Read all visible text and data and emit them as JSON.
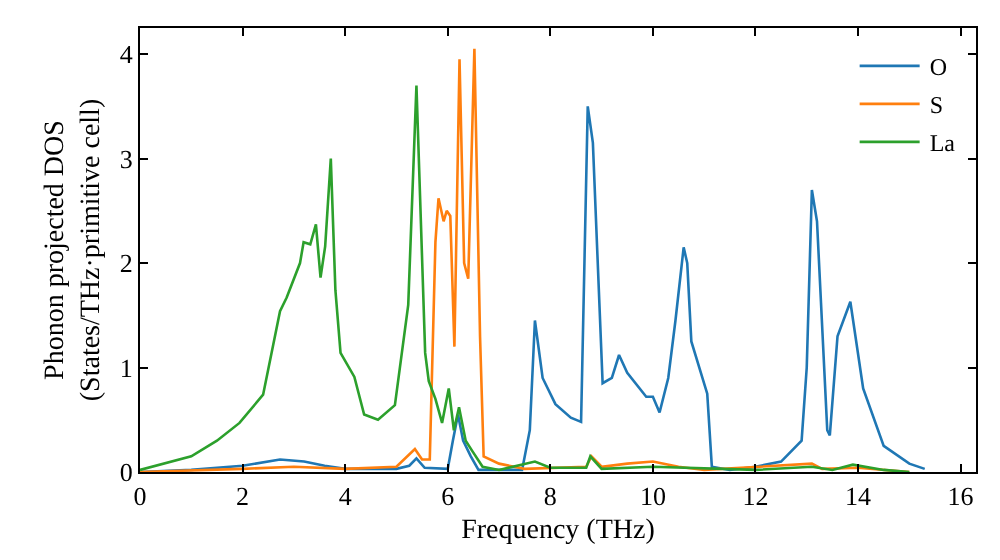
{
  "chart_data": {
    "type": "line",
    "xlabel": "Frequency (THz)",
    "ylabel": "Phonon projected DOS\n(States/THz·primitive cell)",
    "xlim": [
      0,
      16.3
    ],
    "ylim": [
      0,
      4.25
    ],
    "xticks": [
      0,
      2,
      4,
      6,
      8,
      10,
      12,
      14,
      16
    ],
    "yticks": [
      0,
      1,
      2,
      3,
      4
    ],
    "legend": "top right",
    "marker": "none",
    "line_style": "solid",
    "series": [
      {
        "name": "O",
        "color": "#1f77b4",
        "x": [
          0,
          1,
          2,
          2.73,
          3.2,
          3.6,
          4,
          5,
          5.25,
          5.39,
          5.55,
          6.0,
          6.1,
          6.2,
          6.3,
          6.45,
          6.6,
          6.8,
          7.45,
          7.6,
          7.7,
          7.85,
          8.1,
          8.4,
          8.6,
          8.73,
          8.83,
          9.02,
          9.2,
          9.34,
          9.5,
          9.87,
          10.0,
          10.13,
          10.3,
          10.44,
          10.6,
          10.67,
          10.75,
          11.06,
          11.15,
          11.5,
          12,
          12.5,
          12.9,
          13.0,
          13.1,
          13.2,
          13.4,
          13.45,
          13.6,
          13.85,
          14.1,
          14.5,
          15.0,
          15.3
        ],
        "values": [
          0,
          0.02,
          0.06,
          0.12,
          0.1,
          0.06,
          0.03,
          0.03,
          0.06,
          0.13,
          0.04,
          0.03,
          0.3,
          0.55,
          0.3,
          0.15,
          0.02,
          0.02,
          0.02,
          0.4,
          1.45,
          0.9,
          0.65,
          0.52,
          0.48,
          3.5,
          3.15,
          0.85,
          0.9,
          1.12,
          0.95,
          0.72,
          0.72,
          0.57,
          0.9,
          1.45,
          2.15,
          2.0,
          1.25,
          0.75,
          0.05,
          0.02,
          0.05,
          0.1,
          0.3,
          1.0,
          2.7,
          2.4,
          0.4,
          0.35,
          1.3,
          1.63,
          0.8,
          0.25,
          0.08,
          0.03
        ]
      },
      {
        "name": "S",
        "color": "#ff7f0e",
        "x": [
          0,
          2,
          3,
          4,
          5,
          5.36,
          5.5,
          5.65,
          5.76,
          5.82,
          5.92,
          5.98,
          6.05,
          6.13,
          6.23,
          6.32,
          6.4,
          6.52,
          6.63,
          6.7,
          7,
          7.5,
          8.7,
          8.8,
          9.0,
          9.5,
          10,
          10.5,
          11,
          13.1,
          13.3,
          14,
          15
        ],
        "values": [
          0,
          0.03,
          0.05,
          0.03,
          0.05,
          0.22,
          0.12,
          0.12,
          2.2,
          2.62,
          2.4,
          2.5,
          2.45,
          1.2,
          3.95,
          2.0,
          1.85,
          4.05,
          1.3,
          0.15,
          0.08,
          0.03,
          0.05,
          0.15,
          0.05,
          0.08,
          0.1,
          0.05,
          0.02,
          0.08,
          0.03,
          0.04,
          0
        ]
      },
      {
        "name": "La",
        "color": "#2ca02c",
        "x": [
          0,
          1,
          1.5,
          1.94,
          2.4,
          2.73,
          2.86,
          3.12,
          3.19,
          3.32,
          3.43,
          3.52,
          3.61,
          3.72,
          3.81,
          3.91,
          4.18,
          4.37,
          4.64,
          4.97,
          5.23,
          5.39,
          5.56,
          5.63,
          5.76,
          5.89,
          6.02,
          6.12,
          6.22,
          6.35,
          6.48,
          6.68,
          7,
          7.7,
          8,
          8.7,
          8.78,
          9.0,
          10,
          12,
          13.1,
          13.5,
          13.9,
          14.5,
          15
        ],
        "values": [
          0.02,
          0.15,
          0.3,
          0.47,
          0.74,
          1.54,
          1.67,
          2.0,
          2.2,
          2.18,
          2.37,
          1.86,
          2.16,
          3.0,
          1.74,
          1.14,
          0.91,
          0.55,
          0.5,
          0.64,
          1.6,
          3.7,
          1.14,
          0.87,
          0.7,
          0.47,
          0.8,
          0.4,
          0.62,
          0.3,
          0.2,
          0.05,
          0.02,
          0.1,
          0.04,
          0.04,
          0.15,
          0.03,
          0.05,
          0.02,
          0.05,
          0.02,
          0.07,
          0.02,
          0
        ]
      }
    ]
  }
}
